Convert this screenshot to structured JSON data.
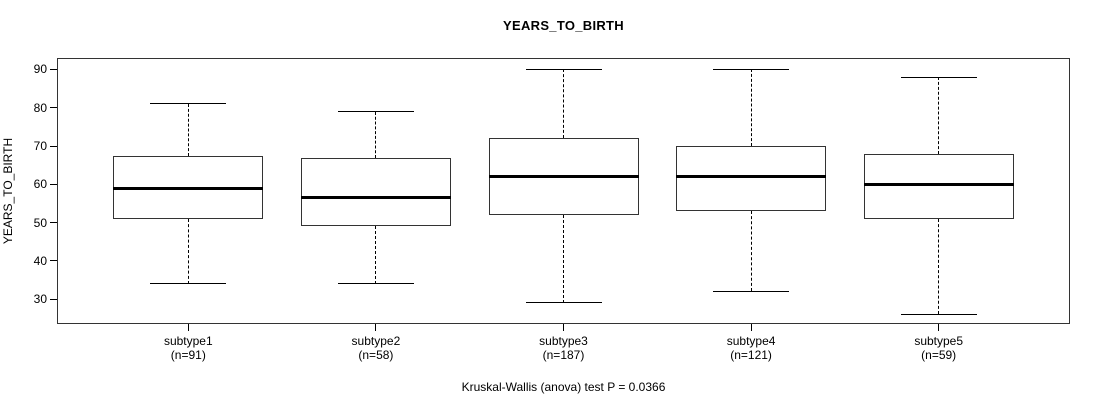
{
  "chart_data": {
    "type": "boxplot",
    "title": "YEARS_TO_BIRTH",
    "ylabel": "YEARS_TO_BIRTH",
    "footer": "Kruskal-Wallis (anova) test P = 0.0366",
    "ylim": [
      23.5,
      93
    ],
    "yticks": [
      30,
      40,
      50,
      60,
      70,
      80,
      90
    ],
    "grid": false,
    "legend": "none",
    "categories": [
      "subtype1",
      "subtype2",
      "subtype3",
      "subtype4",
      "subtype5"
    ],
    "count_labels": [
      "(n=91)",
      "(n=58)",
      "(n=187)",
      "(n=121)",
      "(n=59)"
    ],
    "series": [
      {
        "name": "subtype1",
        "n": 91,
        "whisker_low": 34,
        "q1": 51,
        "median": 59,
        "q3": 67.5,
        "whisker_high": 81
      },
      {
        "name": "subtype2",
        "n": 58,
        "whisker_low": 34,
        "q1": 49,
        "median": 56.5,
        "q3": 67,
        "whisker_high": 79
      },
      {
        "name": "subtype3",
        "n": 187,
        "whisker_low": 29,
        "q1": 52,
        "median": 62,
        "q3": 72,
        "whisker_high": 90
      },
      {
        "name": "subtype4",
        "n": 121,
        "whisker_low": 32,
        "q1": 53,
        "median": 62,
        "q3": 70,
        "whisker_high": 90
      },
      {
        "name": "subtype5",
        "n": 59,
        "whisker_low": 26,
        "q1": 51,
        "median": 60,
        "q3": 68,
        "whisker_high": 88
      }
    ],
    "colors": {
      "background": "#ffffff",
      "line": "#000000",
      "box_border": "#333333",
      "box_fill": "#ffffff",
      "median": "#000000",
      "text": "#000000"
    }
  }
}
